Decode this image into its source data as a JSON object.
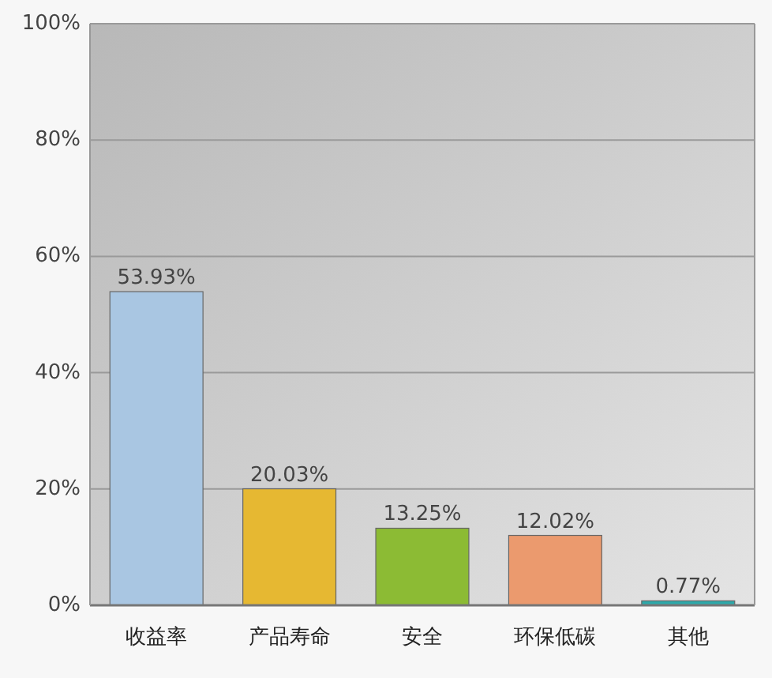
{
  "chart_data": {
    "type": "bar",
    "categories": [
      "收益率",
      "产品寿命",
      "安全",
      "环保低碳",
      "其他"
    ],
    "values": [
      53.93,
      20.03,
      13.25,
      12.02,
      0.77
    ],
    "colors": [
      "#a9c6e2",
      "#e6b832",
      "#8cbb34",
      "#eb9a6e",
      "#2ea9aa"
    ],
    "value_labels": [
      "53.93%",
      "20.03%",
      "13.25%",
      "12.02%",
      "0.77%"
    ],
    "ylim": [
      0,
      100
    ],
    "yticks": [
      {
        "value": 0,
        "label": "0%"
      },
      {
        "value": 20,
        "label": "20%"
      },
      {
        "value": 40,
        "label": "40%"
      },
      {
        "value": 60,
        "label": "60%"
      },
      {
        "value": 80,
        "label": "80%"
      },
      {
        "value": 100,
        "label": "100%"
      }
    ],
    "grid": "y"
  }
}
